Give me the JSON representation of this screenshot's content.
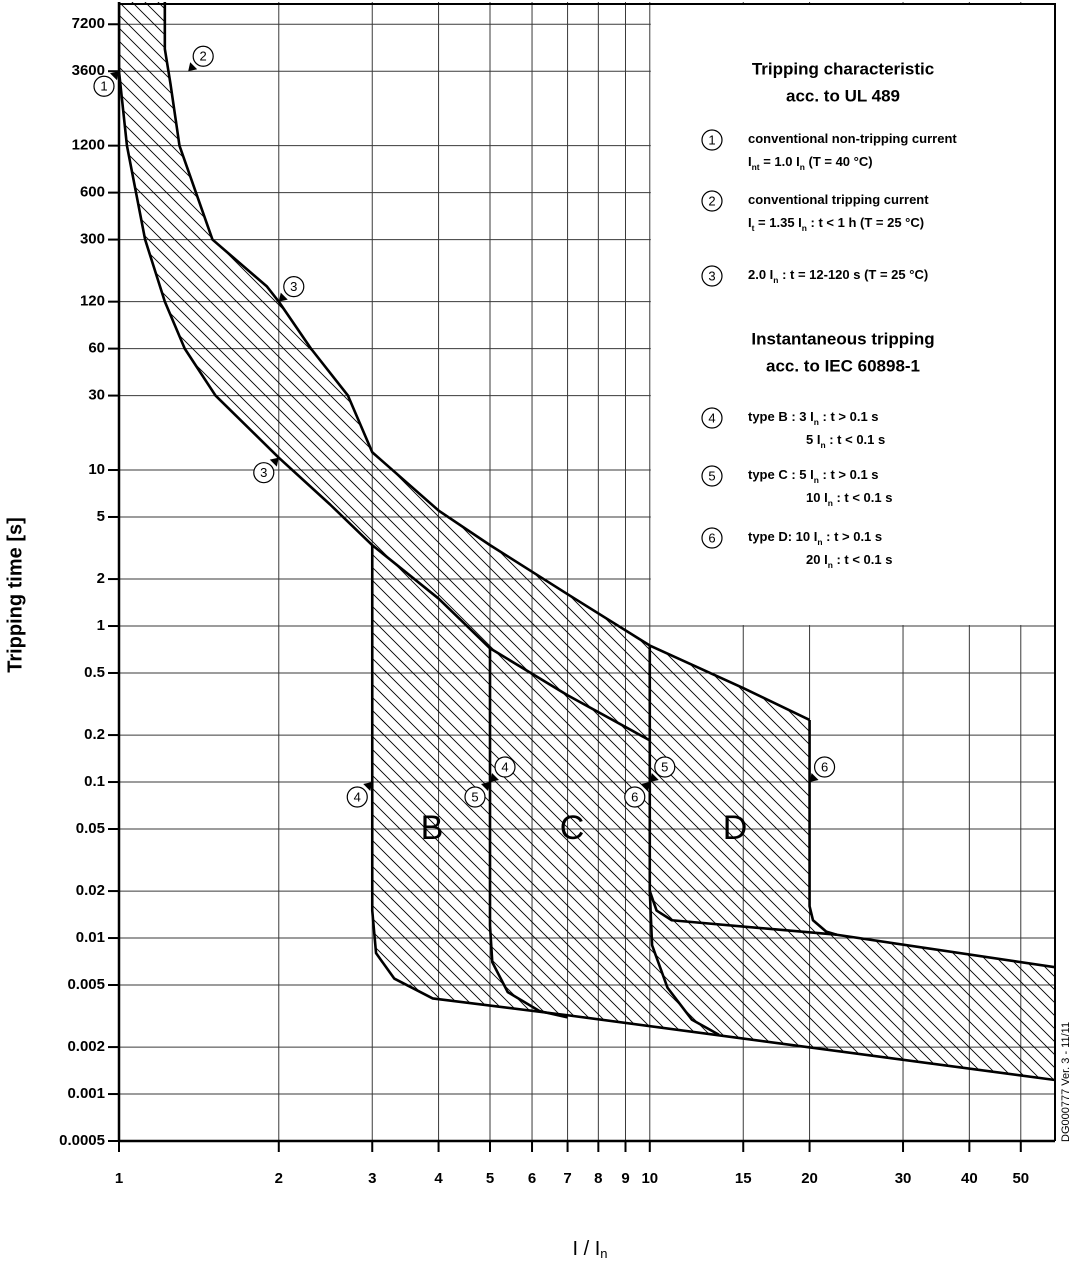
{
  "chart_data": {
    "type": "tripping-curve",
    "y_label": "Tripping time [s]",
    "x_label": [
      {
        "text": "I / I"
      },
      {
        "sub": "n"
      }
    ],
    "log_x": true,
    "log_y": true,
    "grid": true,
    "xlim": [
      1,
      58
    ],
    "ylim": [
      0.0005,
      10000
    ],
    "xticks": [
      1,
      2,
      3,
      4,
      5,
      6,
      7,
      8,
      9,
      10,
      15,
      20,
      30,
      40,
      50
    ],
    "yticks": [
      7200,
      3600,
      1200,
      600,
      300,
      120,
      60,
      30,
      10,
      5,
      2,
      1,
      0.5,
      0.2,
      0.1,
      0.05,
      0.02,
      0.01,
      0.005,
      0.002,
      0.001,
      0.0005
    ],
    "color": "#000000",
    "curves": [
      {
        "x": [
          1.22,
          1.22,
          1.25,
          1.3,
          1.5,
          1.9,
          2,
          2.3,
          2.7,
          3,
          4,
          5,
          7,
          10,
          15,
          20
        ],
        "values": [
          10000,
          5000,
          3000,
          1200,
          300,
          150,
          120,
          60,
          30,
          13,
          5.5,
          3.3,
          1.6,
          0.75,
          0.4,
          0.25
        ]
      },
      {
        "x": [
          20,
          20,
          20.3,
          21.5,
          22.5
        ],
        "values": [
          0.25,
          0.016,
          0.013,
          0.011,
          0.0105
        ]
      },
      {
        "x": [
          10,
          10.3,
          11,
          22.5,
          58
        ],
        "values": [
          0.02,
          0.015,
          0.013,
          0.0105,
          0.0065
        ]
      },
      {
        "x": [
          3,
          3,
          3.05,
          3.3,
          3.9,
          7,
          58
        ],
        "values": [
          3.3,
          0.015,
          0.008,
          0.0055,
          0.0041,
          0.0032,
          0.00123
        ]
      },
      {
        "x": [
          1,
          1,
          1.035,
          1.12,
          1.22,
          1.33,
          1.52,
          2,
          2.5,
          3,
          4,
          5,
          7,
          10
        ],
        "values": [
          10000,
          3600,
          1200,
          300,
          120,
          60,
          30,
          12,
          6,
          3.3,
          1.5,
          0.72,
          0.36,
          0.185
        ]
      },
      {
        "x": [
          5,
          5,
          5.05,
          5.4,
          6.2,
          7
        ],
        "values": [
          0.72,
          0.012,
          0.007,
          0.0045,
          0.0034,
          0.0031
        ]
      },
      {
        "x": [
          10,
          10,
          10.1,
          10.8,
          12,
          13.5
        ],
        "values": [
          0.75,
          0.02,
          0.009,
          0.0048,
          0.003,
          0.0024
        ]
      }
    ],
    "zones": [
      "B",
      "C",
      "D"
    ],
    "markers": [
      {
        "label": "1",
        "x": 1,
        "y": 3600
      },
      {
        "label": "2",
        "x": 1.35,
        "y": 3600
      },
      {
        "label": "3",
        "x": 2,
        "y": 120
      },
      {
        "label": "3",
        "x": 2,
        "y": 12
      },
      {
        "label": "4",
        "x": 3,
        "y": 0.1
      },
      {
        "label": "4",
        "x": 5,
        "y": 0.1
      },
      {
        "label": "5",
        "x": 5,
        "y": 0.1
      },
      {
        "label": "5",
        "x": 10,
        "y": 0.1
      },
      {
        "label": "6",
        "x": 10,
        "y": 0.1
      },
      {
        "label": "6",
        "x": 20,
        "y": 0.1
      }
    ],
    "legend": {
      "sections": [
        {
          "heading": [
            "Tripping characteristic",
            "acc. to UL 489"
          ],
          "items": [
            {
              "number": "1",
              "lines": [
                [
                  {
                    "text": "conventional non-tripping current"
                  }
                ],
                [
                  {
                    "text": "I"
                  },
                  {
                    "sub": "nt"
                  },
                  {
                    "text": " = 1.0 I"
                  },
                  {
                    "sub": "n"
                  },
                  {
                    "text": "   (T = 40 °C)"
                  }
                ]
              ]
            },
            {
              "number": "2",
              "lines": [
                [
                  {
                    "text": "conventional tripping current"
                  }
                ],
                [
                  {
                    "text": "I"
                  },
                  {
                    "sub": "t"
                  },
                  {
                    "text": " = 1.35 I"
                  },
                  {
                    "sub": "n"
                  },
                  {
                    "text": " :  t  < 1 h (T = 25 °C)"
                  }
                ]
              ]
            },
            {
              "number": "3",
              "lines": [
                [
                  {
                    "text": "2.0 I"
                  },
                  {
                    "sub": "n"
                  },
                  {
                    "text": " :  t = 12-120 s (T = 25 °C)"
                  }
                ]
              ]
            }
          ]
        },
        {
          "heading": [
            "Instantaneous tripping",
            "acc. to IEC 60898-1"
          ],
          "items": [
            {
              "number": "4",
              "lines": [
                [
                  {
                    "text": "type B :   3 I"
                  },
                  {
                    "sub": "n"
                  },
                  {
                    "text": "  : t > 0.1 s"
                  }
                ],
                [
                  {
                    "text": "5 I"
                  },
                  {
                    "sub": "n"
                  },
                  {
                    "text": "  : t < 0.1 s"
                  }
                ]
              ]
            },
            {
              "number": "5",
              "lines": [
                [
                  {
                    "text": "type C :   5 I"
                  },
                  {
                    "sub": "n"
                  },
                  {
                    "text": "  : t > 0.1 s"
                  }
                ],
                [
                  {
                    "text": "10 I"
                  },
                  {
                    "sub": "n"
                  },
                  {
                    "text": "  : t < 0.1 s"
                  }
                ]
              ]
            },
            {
              "number": "6",
              "lines": [
                [
                  {
                    "text": "type D:  10 I"
                  },
                  {
                    "sub": "n"
                  },
                  {
                    "text": "  : t > 0.1 s"
                  }
                ],
                [
                  {
                    "text": "20 I"
                  },
                  {
                    "sub": "n"
                  },
                  {
                    "text": "  : t < 0.1 s"
                  }
                ]
              ]
            }
          ]
        }
      ]
    },
    "version_note": "DG000777 Ver. 3 - 11/11"
  }
}
